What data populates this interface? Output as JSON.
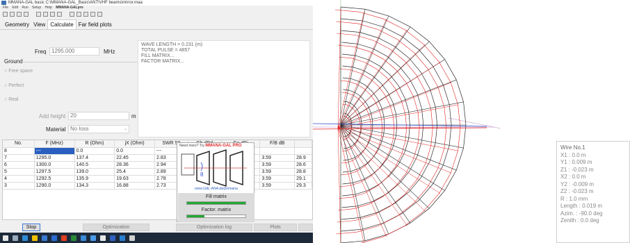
{
  "window": {
    "title": "MMANA-GAL basic C:\\MMANA-GAL_Basic\\ANT\\VHF beams\\mirror.maa",
    "menu": [
      "File",
      "Edit",
      "Run",
      "Setup",
      "Help"
    ],
    "project_name": "MMANA-GALpro"
  },
  "tabs": [
    {
      "label": "Geometry"
    },
    {
      "label": "View"
    },
    {
      "label": "Calculate"
    },
    {
      "label": "Far field plots"
    }
  ],
  "calc": {
    "freq_label": "Freq",
    "freq_value": "1295.000",
    "freq_unit": "MHz",
    "ground_label": "Ground",
    "ground_options": [
      "Free space",
      "Perfect",
      "Real"
    ],
    "add_height_label": "Add height",
    "add_height_value": "20",
    "add_height_unit": "m",
    "material_label": "Material",
    "material_value": "No loss"
  },
  "log": [
    "WAVE LENGTH = 0.231 (m)",
    "TOTAL PULSE = 4857",
    "FILL MATRIX...",
    "FACTOR MATRIX..."
  ],
  "table": {
    "headers": [
      "No.",
      "F (MHz)",
      "R (Ohm)",
      "jX (Ohm)",
      "SWR 50",
      "Gh dBd",
      "Ga dBi",
      "F/B dB",
      ""
    ],
    "rows": [
      [
        "8",
        "---",
        "0.0",
        "0.0",
        "---",
        "",
        "",
        "",
        ""
      ],
      [
        "7",
        "1295.0",
        "137.4",
        "22.45",
        "2.83",
        "",
        "",
        "3.59",
        "28.9"
      ],
      [
        "6",
        "1300.0",
        "140.5",
        "28.36",
        "2.94",
        "",
        "",
        "3.59",
        "28.6"
      ],
      [
        "5",
        "1297.5",
        "139.0",
        "25.4",
        "2.89",
        "",
        "",
        "3.59",
        "28.8"
      ],
      [
        "4",
        "1292.5",
        "135.9",
        "19.63",
        "2.78",
        "",
        "",
        "3.59",
        "29.1"
      ],
      [
        "3",
        "1290.0",
        "134.3",
        "16.88",
        "2.73",
        "",
        "",
        "3.59",
        "29.3"
      ]
    ]
  },
  "promo": {
    "need_more": "Need more? Try",
    "brand": "MMANA-GAL PRO",
    "url": "www.GAL-ANA.de/pmmana",
    "fill_label": "Fill matrix",
    "fill_progress": 1.0,
    "factor_label": "Factor. matrix",
    "factor_progress": 0.3
  },
  "buttons": {
    "stop": "Stop",
    "optimization": "Optimization",
    "optimization_log": "Optimization log",
    "plots": "Plots"
  },
  "wire_info": {
    "title": "Wire No.1",
    "lines": [
      "X1  :  0.0 m",
      "Y1  :  0.009 m",
      "Z1  :  -0.023 m",
      "X2  :  0.0 m",
      "Y2  :  -0.009 m",
      "Z2  :  -0.023 m",
      "R  :  1.0 mm",
      "Length  :  0.019 m",
      "Azim.  :  -90.0 deg",
      "Zenith  :  0.0 deg"
    ]
  },
  "colors": {
    "wire_black": "#2a2a2a",
    "wire_red": "#e02020",
    "wire_blue": "#3050d0",
    "accent": "#2a5fc0",
    "progress_green": "#22a833"
  }
}
